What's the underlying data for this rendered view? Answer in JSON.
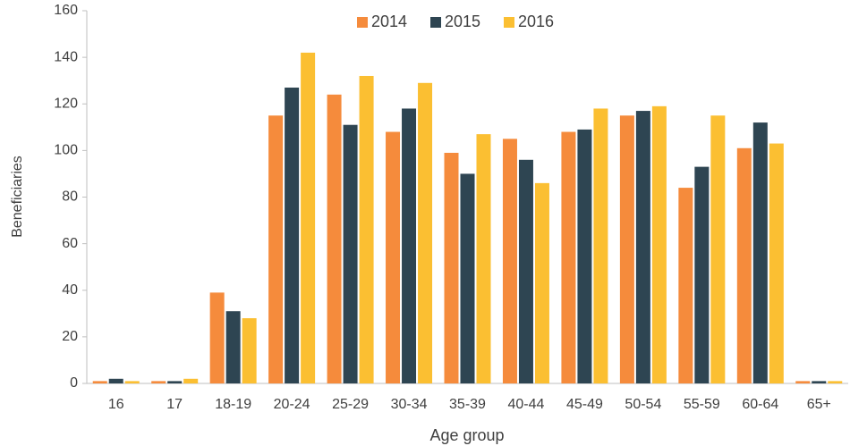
{
  "chart_data": {
    "type": "bar",
    "x_label": "Age group",
    "y_label": "Beneficiaries",
    "categories": [
      "16",
      "17",
      "18-19",
      "20-24",
      "25-29",
      "30-34",
      "35-39",
      "40-44",
      "45-49",
      "50-54",
      "55-59",
      "60-64",
      "65+"
    ],
    "series": [
      {
        "name": "2014",
        "color": "#f58b3c",
        "values": [
          1,
          1,
          39,
          115,
          124,
          108,
          99,
          105,
          108,
          115,
          84,
          101,
          1
        ]
      },
      {
        "name": "2015",
        "color": "#2e4552",
        "values": [
          2,
          1,
          31,
          127,
          111,
          118,
          90,
          96,
          109,
          117,
          93,
          112,
          1
        ]
      },
      {
        "name": "2016",
        "color": "#fbbf32",
        "values": [
          1,
          2,
          28,
          142,
          132,
          129,
          107,
          86,
          118,
          119,
          115,
          103,
          1
        ]
      }
    ],
    "ylim": [
      0,
      160
    ],
    "yticks": [
      0,
      20,
      40,
      60,
      80,
      100,
      120,
      140,
      160
    ],
    "grid": false,
    "legend": "top"
  }
}
